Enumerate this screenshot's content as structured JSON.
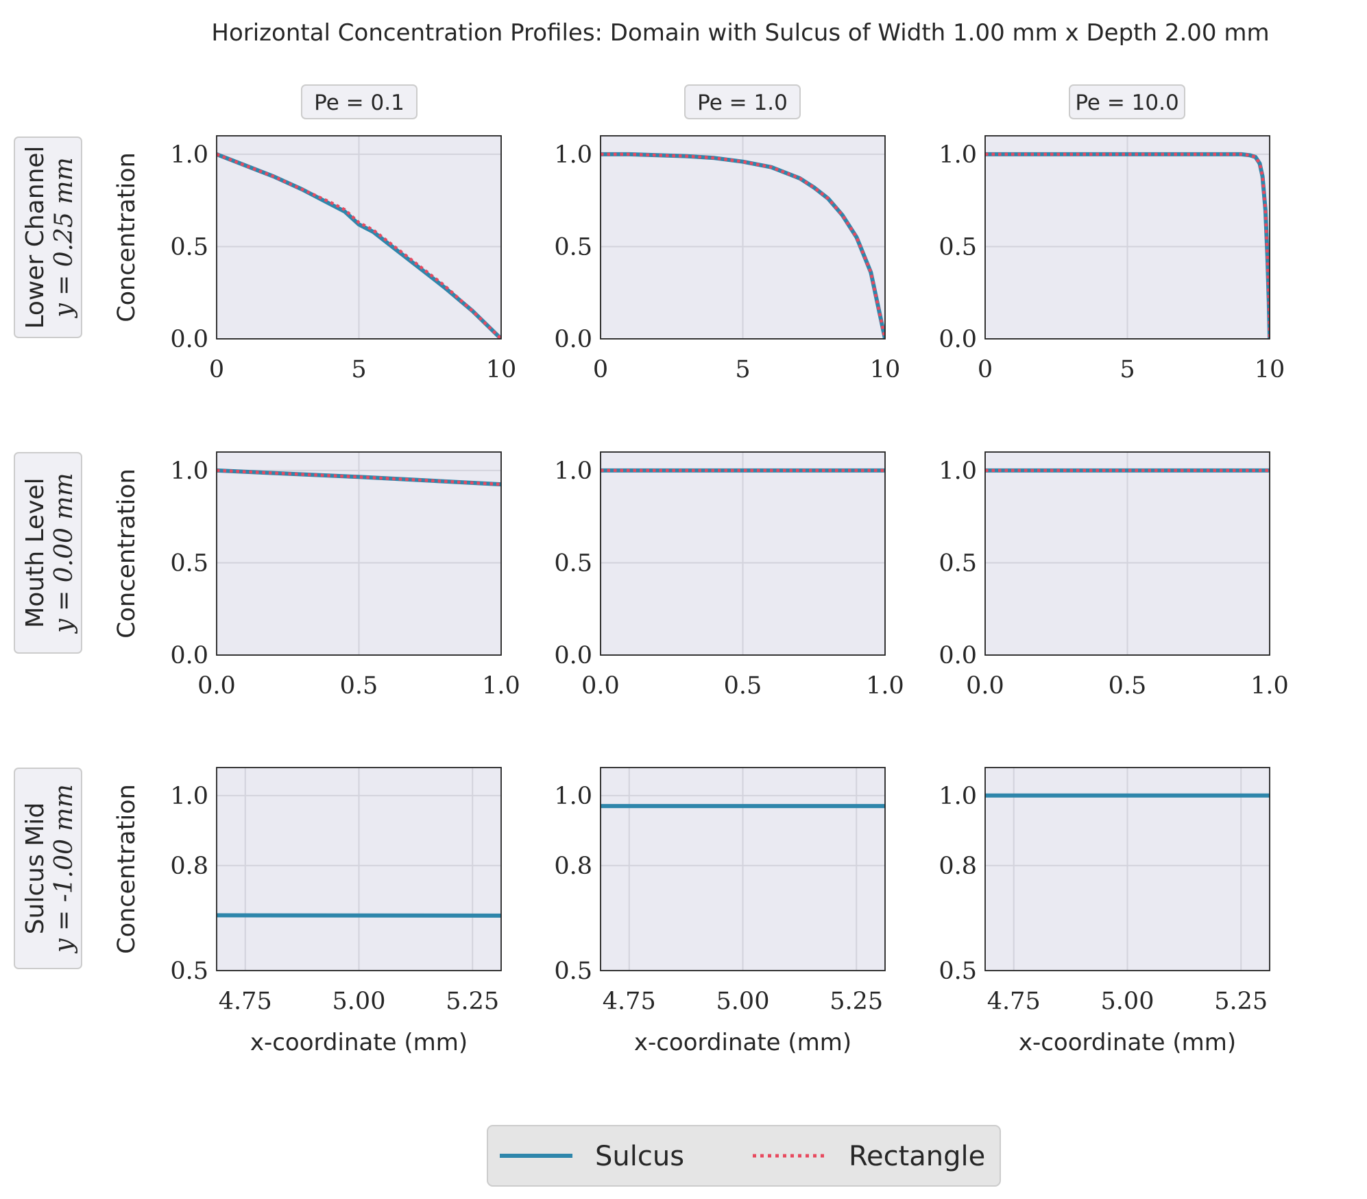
{
  "figure": {
    "title": "Horizontal Concentration Profiles: Domain with Sulcus of Width 1.00 mm x Depth 2.00 mm"
  },
  "colors": {
    "sulcus": "#2e86ab",
    "rectangle": "#e84a5f",
    "panel": "#eaeaf2"
  },
  "columns": [
    {
      "label": "Pe = 0.1"
    },
    {
      "label": "Pe = 1.0"
    },
    {
      "label": "Pe = 10.0"
    }
  ],
  "rows": [
    {
      "line1": "Lower Channel",
      "line2": "y = 0.25 mm"
    },
    {
      "line1": "Mouth Level",
      "line2": "y = 0.00 mm"
    },
    {
      "line1": "Sulcus Mid",
      "line2": "y = -1.00 mm"
    }
  ],
  "legend": {
    "entries": [
      "Sulcus",
      "Rectangle"
    ]
  },
  "chart_data": [
    {
      "type": "line",
      "row": 0,
      "col": 0,
      "ylabel": "Concentration",
      "xlabel": "",
      "xlim": [
        0,
        10
      ],
      "ylim": [
        0,
        1.1
      ],
      "xticks": [
        "0",
        "5",
        "10"
      ],
      "yticks": [
        "0.0",
        "0.5",
        "1.0"
      ],
      "grid": true,
      "series": [
        {
          "name": "Sulcus",
          "x": [
            0,
            1,
            2,
            3,
            4,
            4.5,
            5,
            5.5,
            6,
            7,
            8,
            9,
            10
          ],
          "y": [
            1.0,
            0.94,
            0.88,
            0.81,
            0.73,
            0.69,
            0.62,
            0.58,
            0.52,
            0.4,
            0.28,
            0.15,
            0.0
          ]
        },
        {
          "name": "Rectangle",
          "x": [
            0,
            1,
            2,
            3,
            4,
            4.5,
            5,
            5.5,
            6,
            7,
            8,
            9,
            10
          ],
          "y": [
            1.0,
            0.94,
            0.88,
            0.81,
            0.74,
            0.7,
            0.63,
            0.59,
            0.53,
            0.41,
            0.29,
            0.15,
            0.0
          ]
        }
      ]
    },
    {
      "type": "line",
      "row": 0,
      "col": 1,
      "ylabel": "",
      "xlabel": "",
      "xlim": [
        0,
        10
      ],
      "ylim": [
        0,
        1.1
      ],
      "xticks": [
        "0",
        "5",
        "10"
      ],
      "yticks": [
        "0.0",
        "0.5",
        "1.0"
      ],
      "grid": true,
      "series": [
        {
          "name": "Sulcus",
          "x": [
            0,
            1,
            2,
            3,
            4,
            5,
            6,
            7,
            7.5,
            8,
            8.5,
            9,
            9.5,
            10
          ],
          "y": [
            1.0,
            1.0,
            0.995,
            0.99,
            0.98,
            0.96,
            0.93,
            0.87,
            0.82,
            0.76,
            0.67,
            0.55,
            0.36,
            0.0
          ]
        },
        {
          "name": "Rectangle",
          "x": [
            0,
            1,
            2,
            3,
            4,
            5,
            6,
            7,
            7.5,
            8,
            8.5,
            9,
            9.5,
            10
          ],
          "y": [
            1.0,
            1.0,
            0.995,
            0.99,
            0.98,
            0.96,
            0.93,
            0.87,
            0.82,
            0.76,
            0.67,
            0.55,
            0.36,
            0.0
          ]
        }
      ]
    },
    {
      "type": "line",
      "row": 0,
      "col": 2,
      "ylabel": "",
      "xlabel": "",
      "xlim": [
        0,
        10
      ],
      "ylim": [
        0,
        1.1
      ],
      "xticks": [
        "0",
        "5",
        "10"
      ],
      "yticks": [
        "0.0",
        "0.5",
        "1.0"
      ],
      "grid": true,
      "series": [
        {
          "name": "Sulcus",
          "x": [
            0,
            5,
            9,
            9.3,
            9.5,
            9.65,
            9.75,
            9.85,
            9.92,
            9.97,
            10
          ],
          "y": [
            1.0,
            1.0,
            1.0,
            0.995,
            0.985,
            0.95,
            0.88,
            0.7,
            0.45,
            0.2,
            0.0
          ]
        },
        {
          "name": "Rectangle",
          "x": [
            0,
            5,
            9,
            9.3,
            9.5,
            9.65,
            9.75,
            9.85,
            9.92,
            9.97,
            10
          ],
          "y": [
            1.0,
            1.0,
            1.0,
            0.995,
            0.985,
            0.95,
            0.88,
            0.7,
            0.45,
            0.2,
            0.0
          ]
        }
      ]
    },
    {
      "type": "line",
      "row": 1,
      "col": 0,
      "ylabel": "Concentration",
      "xlabel": "",
      "xlim": [
        0,
        1
      ],
      "ylim": [
        0,
        1.1
      ],
      "xticks": [
        "0.0",
        "0.5",
        "1.0"
      ],
      "yticks": [
        "0.0",
        "0.5",
        "1.0"
      ],
      "grid": true,
      "series": [
        {
          "name": "Sulcus",
          "x": [
            0,
            0.5,
            1.0
          ],
          "y": [
            1.0,
            0.965,
            0.925
          ]
        },
        {
          "name": "Rectangle",
          "x": [
            0,
            0.5,
            1.0
          ],
          "y": [
            1.0,
            0.965,
            0.925
          ]
        }
      ]
    },
    {
      "type": "line",
      "row": 1,
      "col": 1,
      "ylabel": "",
      "xlabel": "",
      "xlim": [
        0,
        1
      ],
      "ylim": [
        0,
        1.1
      ],
      "xticks": [
        "0.0",
        "0.5",
        "1.0"
      ],
      "yticks": [
        "0.0",
        "0.5",
        "1.0"
      ],
      "grid": true,
      "series": [
        {
          "name": "Sulcus",
          "x": [
            0,
            1
          ],
          "y": [
            1.0,
            1.0
          ]
        },
        {
          "name": "Rectangle",
          "x": [
            0,
            1
          ],
          "y": [
            1.0,
            1.0
          ]
        }
      ]
    },
    {
      "type": "line",
      "row": 1,
      "col": 2,
      "ylabel": "",
      "xlabel": "",
      "xlim": [
        0,
        1
      ],
      "ylim": [
        0,
        1.1
      ],
      "xticks": [
        "0.0",
        "0.5",
        "1.0"
      ],
      "yticks": [
        "0.0",
        "0.5",
        "1.0"
      ],
      "grid": true,
      "series": [
        {
          "name": "Sulcus",
          "x": [
            0,
            1
          ],
          "y": [
            1.0,
            1.0
          ]
        },
        {
          "name": "Rectangle",
          "x": [
            0,
            1
          ],
          "y": [
            1.0,
            1.0
          ]
        }
      ]
    },
    {
      "type": "line",
      "row": 2,
      "col": 0,
      "ylabel": "Concentration",
      "xlabel": "x-coordinate (mm)",
      "xlim": [
        4.687,
        5.313
      ],
      "ylim": [
        0.5,
        1.08
      ],
      "xticks": [
        "4.75",
        "5.00",
        "5.25"
      ],
      "yticks": [
        "0.5",
        "0.8",
        "1.0"
      ],
      "grid": true,
      "series": [
        {
          "name": "Sulcus",
          "x": [
            4.687,
            5.313
          ],
          "y": [
            0.658,
            0.657
          ]
        }
      ]
    },
    {
      "type": "line",
      "row": 2,
      "col": 1,
      "ylabel": "",
      "xlabel": "x-coordinate (mm)",
      "xlim": [
        4.687,
        5.313
      ],
      "ylim": [
        0.5,
        1.08
      ],
      "xticks": [
        "4.75",
        "5.00",
        "5.25"
      ],
      "yticks": [
        "0.5",
        "0.8",
        "1.0"
      ],
      "grid": true,
      "series": [
        {
          "name": "Sulcus",
          "x": [
            4.687,
            5.313
          ],
          "y": [
            0.97,
            0.97
          ]
        }
      ]
    },
    {
      "type": "line",
      "row": 2,
      "col": 2,
      "ylabel": "",
      "xlabel": "x-coordinate (mm)",
      "xlim": [
        4.687,
        5.313
      ],
      "ylim": [
        0.5,
        1.08
      ],
      "xticks": [
        "4.75",
        "5.00",
        "5.25"
      ],
      "yticks": [
        "0.5",
        "0.8",
        "1.0"
      ],
      "grid": true,
      "series": [
        {
          "name": "Sulcus",
          "x": [
            4.687,
            5.313
          ],
          "y": [
            1.0,
            1.0
          ]
        }
      ]
    }
  ]
}
